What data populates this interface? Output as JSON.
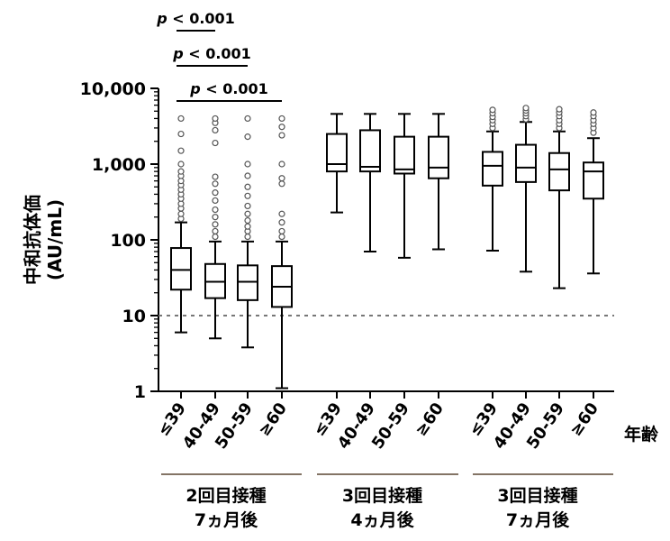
{
  "chart_data": {
    "type": "boxplot",
    "yscale": "log",
    "ylim": [
      1,
      10000
    ],
    "ylabel": "中和抗体価",
    "ylabel_unit": "(AU/mL)",
    "yticks": [
      {
        "value": 1,
        "label": "1"
      },
      {
        "value": 10,
        "label": "10"
      },
      {
        "value": 100,
        "label": "100"
      },
      {
        "value": 1000,
        "label": "1,000"
      },
      {
        "value": 10000,
        "label": "10,000"
      }
    ],
    "xlabel": "年齢",
    "reference_line": {
      "value": 10,
      "style": "dashed"
    },
    "groups": [
      {
        "label_line1": "2回目接種",
        "label_line2": "7ヵ月後",
        "boxes": [
          {
            "category": "≤39",
            "min": 6,
            "q1": 22,
            "median": 40,
            "q3": 78,
            "max": 170,
            "outliers": [
              190,
              220,
              260,
              300,
              350,
              400,
              460,
              530,
              600,
              700,
              800,
              1000,
              1500,
              2500,
              4000
            ]
          },
          {
            "category": "40-49",
            "min": 5,
            "q1": 17,
            "median": 28,
            "q3": 48,
            "max": 95,
            "outliers": [
              110,
              130,
              160,
              200,
              250,
              330,
              420,
              550,
              680,
              1900,
              2800,
              3500,
              4000
            ]
          },
          {
            "category": "50-59",
            "min": 3.8,
            "q1": 16,
            "median": 28,
            "q3": 46,
            "max": 95,
            "outliers": [
              110,
              130,
              150,
              180,
              220,
              280,
              380,
              500,
              700,
              1000,
              2300,
              4000
            ]
          },
          {
            "category": "≥60",
            "min": 1.1,
            "q1": 13,
            "median": 24,
            "q3": 45,
            "max": 95,
            "outliers": [
              110,
              130,
              170,
              220,
              550,
              650,
              1000,
              2400,
              3100,
              4000
            ]
          }
        ]
      },
      {
        "label_line1": "3回目接種",
        "label_line2": "4ヵ月後",
        "boxes": [
          {
            "category": "≤39",
            "min": 230,
            "q1": 800,
            "median": 1000,
            "q3": 2500,
            "max": 4600,
            "outliers": []
          },
          {
            "category": "40-49",
            "min": 70,
            "q1": 800,
            "median": 920,
            "q3": 2800,
            "max": 4600,
            "outliers": []
          },
          {
            "category": "50-59",
            "min": 58,
            "q1": 750,
            "median": 850,
            "q3": 2300,
            "max": 4600,
            "outliers": []
          },
          {
            "category": "≥60",
            "min": 75,
            "q1": 650,
            "median": 900,
            "q3": 2300,
            "max": 4600,
            "outliers": []
          }
        ]
      },
      {
        "label_line1": "3回目接種",
        "label_line2": "7ヵ月後",
        "boxes": [
          {
            "category": "≤39",
            "min": 72,
            "q1": 520,
            "median": 950,
            "q3": 1450,
            "max": 2700,
            "outliers": [
              3000,
              3400,
              3800,
              4200,
              4700,
              5200
            ]
          },
          {
            "category": "40-49",
            "min": 38,
            "q1": 580,
            "median": 900,
            "q3": 1800,
            "max": 3600,
            "outliers": [
              3900,
              4300,
              4700,
              5100,
              5500
            ]
          },
          {
            "category": "50-59",
            "min": 23,
            "q1": 450,
            "median": 850,
            "q3": 1400,
            "max": 2700,
            "outliers": [
              3000,
              3400,
              3800,
              4300,
              4800,
              5300
            ]
          },
          {
            "category": "≥60",
            "min": 36,
            "q1": 350,
            "median": 800,
            "q3": 1050,
            "max": 2200,
            "outliers": [
              2600,
              3000,
              3400,
              3800,
              4300,
              4800
            ]
          }
        ]
      }
    ],
    "annotations": [
      {
        "text": "p < 0.001",
        "from_box": 0,
        "to_box": 1
      },
      {
        "text": "p < 0.001",
        "from_box": 0,
        "to_box": 2
      },
      {
        "text": "p < 0.001",
        "from_box": 0,
        "to_box": 3
      }
    ]
  }
}
